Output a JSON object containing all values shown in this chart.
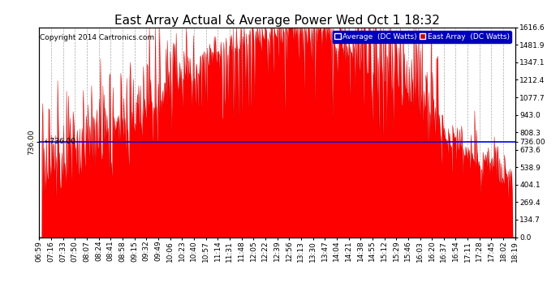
{
  "title": "East Array Actual & Average Power Wed Oct 1 18:32",
  "copyright": "Copyright 2014 Cartronics.com",
  "average_value": 736.0,
  "y_max": 1616.6,
  "y_ticks_right": [
    0.0,
    134.7,
    269.4,
    404.1,
    538.9,
    673.6,
    808.3,
    943.0,
    1077.7,
    1212.4,
    1347.1,
    1481.9,
    1616.6
  ],
  "x_labels": [
    "06:59",
    "07:16",
    "07:33",
    "07:50",
    "08:07",
    "08:24",
    "08:41",
    "08:58",
    "09:15",
    "09:32",
    "09:49",
    "10:06",
    "10:23",
    "10:40",
    "10:57",
    "11:14",
    "11:31",
    "11:48",
    "12:05",
    "12:22",
    "12:39",
    "12:56",
    "13:13",
    "13:30",
    "13:47",
    "14:04",
    "14:21",
    "14:38",
    "14:55",
    "15:12",
    "15:29",
    "15:46",
    "16:03",
    "16:20",
    "16:37",
    "16:54",
    "17:11",
    "17:28",
    "17:45",
    "18:02",
    "18:19"
  ],
  "fill_color": "#ff0000",
  "avg_line_color": "#0000ff",
  "grid_color": "#aaaaaa",
  "background_color": "#ffffff",
  "title_fontsize": 11,
  "copyright_fontsize": 6.5,
  "tick_fontsize": 6.5,
  "legend_blue_bg": "#0000bb",
  "legend_red_bg": "#cc0000"
}
